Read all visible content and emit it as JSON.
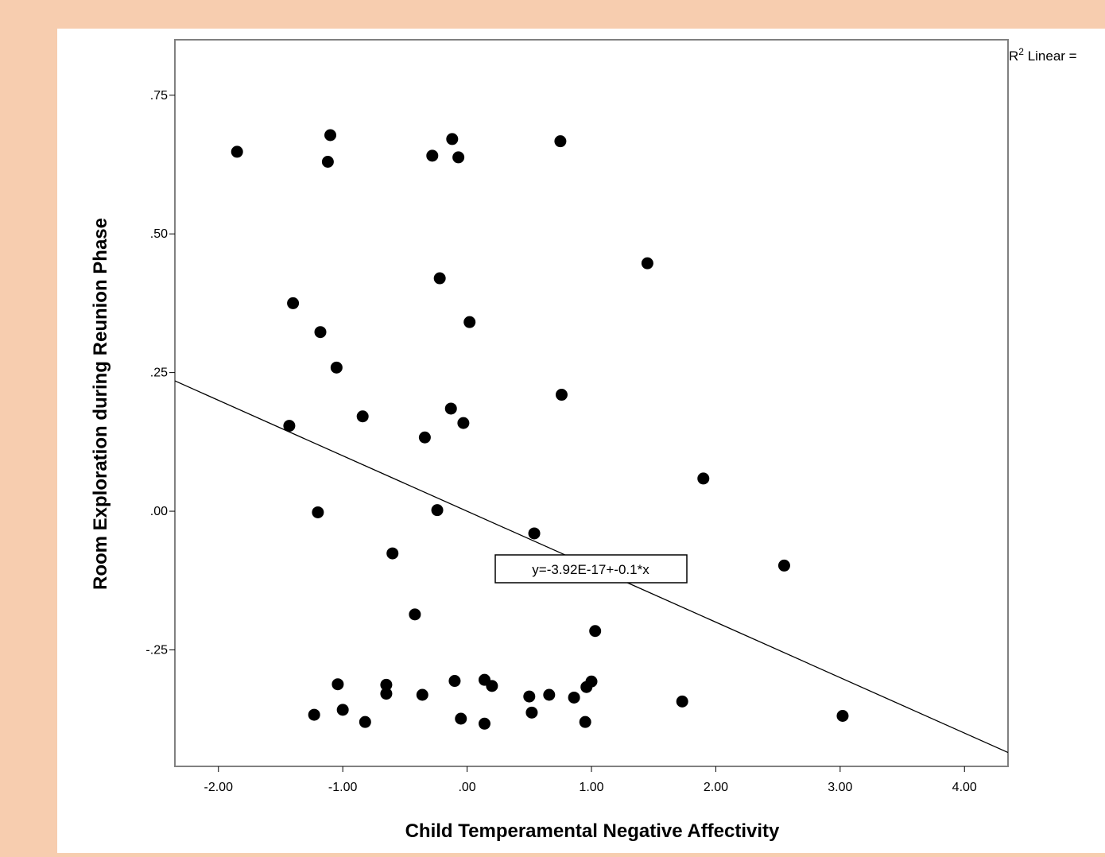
{
  "chart_data": {
    "type": "scatter",
    "title": "",
    "xlabel": "Child Temperamental Negative Affectivity",
    "ylabel": "Room Exploration during Reunion Phase",
    "xlim": [
      -2.35,
      4.35
    ],
    "ylim": [
      -0.46,
      0.85
    ],
    "x_ticks": [
      -2,
      -1,
      0,
      1,
      2,
      3,
      4
    ],
    "x_tick_labels": [
      "-2.00",
      "-1.00",
      ".00",
      "1.00",
      "2.00",
      "3.00",
      "4.00"
    ],
    "y_ticks": [
      -0.25,
      0,
      0.25,
      0.5,
      0.75
    ],
    "y_tick_labels": [
      "-.25",
      ".00",
      ".25",
      ".50",
      ".75"
    ],
    "grid": false,
    "legend": "none",
    "points": [
      {
        "x": -1.85,
        "y": 0.648
      },
      {
        "x": -1.1,
        "y": 0.678
      },
      {
        "x": -1.12,
        "y": 0.63
      },
      {
        "x": -0.12,
        "y": 0.671
      },
      {
        "x": -0.28,
        "y": 0.641
      },
      {
        "x": -0.07,
        "y": 0.638
      },
      {
        "x": 0.75,
        "y": 0.667
      },
      {
        "x": 1.45,
        "y": 0.447
      },
      {
        "x": -0.22,
        "y": 0.42
      },
      {
        "x": -1.4,
        "y": 0.375
      },
      {
        "x": 0.02,
        "y": 0.341
      },
      {
        "x": -1.18,
        "y": 0.323
      },
      {
        "x": -1.05,
        "y": 0.259
      },
      {
        "x": 0.76,
        "y": 0.21
      },
      {
        "x": -0.13,
        "y": 0.185
      },
      {
        "x": -0.84,
        "y": 0.171
      },
      {
        "x": -0.03,
        "y": 0.159
      },
      {
        "x": -1.43,
        "y": 0.154
      },
      {
        "x": -0.34,
        "y": 0.133
      },
      {
        "x": 1.9,
        "y": 0.059
      },
      {
        "x": -1.2,
        "y": -0.002
      },
      {
        "x": -0.24,
        "y": 0.002
      },
      {
        "x": 0.54,
        "y": -0.04
      },
      {
        "x": -0.6,
        "y": -0.076
      },
      {
        "x": 2.55,
        "y": -0.098
      },
      {
        "x": -0.42,
        "y": -0.186
      },
      {
        "x": 1.03,
        "y": -0.216
      },
      {
        "x": -1.04,
        "y": -0.312
      },
      {
        "x": -0.65,
        "y": -0.313
      },
      {
        "x": -0.1,
        "y": -0.306
      },
      {
        "x": 0.14,
        "y": -0.304
      },
      {
        "x": 0.2,
        "y": -0.315
      },
      {
        "x": 1.0,
        "y": -0.307
      },
      {
        "x": 0.96,
        "y": -0.317
      },
      {
        "x": -0.65,
        "y": -0.329
      },
      {
        "x": -0.36,
        "y": -0.331
      },
      {
        "x": 0.5,
        "y": -0.334
      },
      {
        "x": 0.66,
        "y": -0.331
      },
      {
        "x": 0.86,
        "y": -0.336
      },
      {
        "x": 1.73,
        "y": -0.343
      },
      {
        "x": -1.0,
        "y": -0.358
      },
      {
        "x": 0.52,
        "y": -0.363
      },
      {
        "x": -1.23,
        "y": -0.367
      },
      {
        "x": -0.05,
        "y": -0.374
      },
      {
        "x": -0.82,
        "y": -0.38
      },
      {
        "x": 0.14,
        "y": -0.383
      },
      {
        "x": 0.95,
        "y": -0.38
      },
      {
        "x": 3.02,
        "y": -0.369
      }
    ],
    "fit_line": {
      "intercept": -3.92e-17,
      "slope": -0.1
    },
    "fit_equation": "y=-3.92E-17+-0.1*x",
    "r2_label_prefix": "R",
    "r2_label_sup": "2",
    "r2_label_suffix": " Linear ="
  }
}
